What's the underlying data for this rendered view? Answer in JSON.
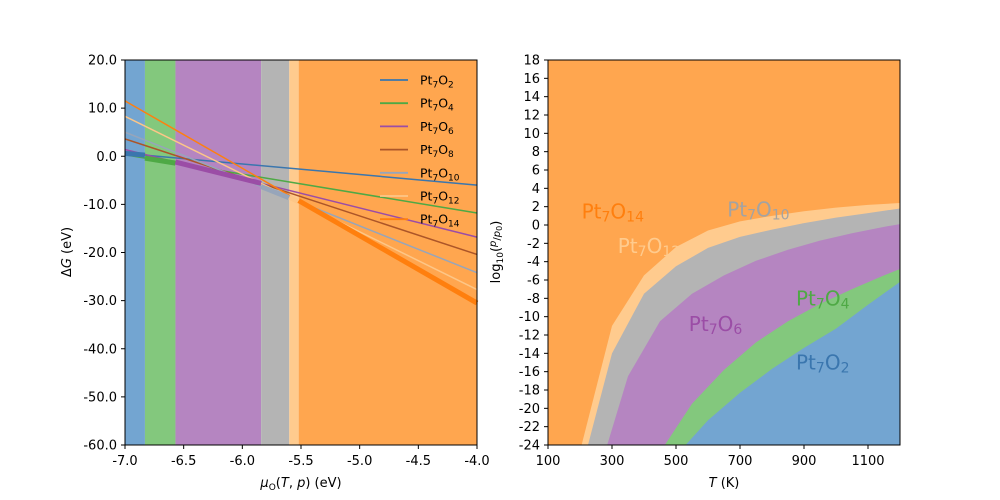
{
  "chart_data": [
    {
      "type": "line",
      "xlabel": "μ_O(T, p) (eV)",
      "ylabel": "ΔG (eV)",
      "xlim": [
        -7.0,
        -4.0
      ],
      "ylim": [
        -60.0,
        20.0
      ],
      "xticks": [
        "-7.0",
        "-6.5",
        "-6.0",
        "-5.5",
        "-5.0",
        "-4.5",
        "-4.0"
      ],
      "yticks": [
        "20.0",
        "10.0",
        "0.0",
        "-10.0",
        "-20.0",
        "-30.0",
        "-40.0",
        "-50.0",
        "-60.0"
      ],
      "legend_position": "top-right",
      "stability_bands": [
        {
          "phase": "Pt7O2",
          "from": -7.0,
          "to": -6.83,
          "color": "#73a5d1"
        },
        {
          "phase": "Pt7O4",
          "from": -6.83,
          "to": -6.57,
          "color": "#83c87d"
        },
        {
          "phase": "Pt7O6",
          "from": -6.57,
          "to": -5.84,
          "color": "#b585c1"
        },
        {
          "phase": "Pt7O10",
          "from": -5.84,
          "to": -5.6,
          "color": "#b4b4b4"
        },
        {
          "phase": "Pt7O12",
          "from": -5.6,
          "to": -5.52,
          "color": "#ffcb8e"
        },
        {
          "phase": "Pt7O14",
          "from": -5.52,
          "to": -4.0,
          "color": "#ffa64f"
        }
      ],
      "series": [
        {
          "name": "Pt7O2",
          "label_main": "Pt",
          "label_sub": "7",
          "label_main2": "O",
          "label_sub2": "2",
          "n": 2,
          "values_at_x": [
            [
              -7.0,
              0.6
            ],
            [
              -4.0,
              -6.0
            ]
          ],
          "color": "#3a76ae"
        },
        {
          "name": "Pt7O4",
          "label_main": "Pt",
          "label_sub": "7",
          "label_main2": "O",
          "label_sub2": "4",
          "n": 4,
          "values_at_x": [
            [
              -7.0,
              0.3
            ],
            [
              -4.0,
              -11.8
            ]
          ],
          "color": "#4ea945"
        },
        {
          "name": "Pt7O6",
          "label_main": "Pt",
          "label_sub": "7",
          "label_main2": "O",
          "label_sub2": "6",
          "n": 6,
          "values_at_x": [
            [
              -7.0,
              1.4
            ],
            [
              -4.0,
              -16.8
            ]
          ],
          "color": "#9b4da6"
        },
        {
          "name": "Pt7O8",
          "label_main": "Pt",
          "label_sub": "7",
          "label_main2": "O",
          "label_sub2": "8",
          "n": 8,
          "values_at_x": [
            [
              -7.0,
              3.6
            ],
            [
              -4.0,
              -20.4
            ]
          ],
          "color": "#ac5528"
        },
        {
          "name": "Pt7O10",
          "label_main": "Pt",
          "label_sub": "7",
          "label_main2": "O",
          "label_sub2": "10",
          "n": 10,
          "values_at_x": [
            [
              -7.0,
              5.0
            ],
            [
              -4.0,
              -24.2
            ]
          ],
          "color": "#97a5ba"
        },
        {
          "name": "Pt7O12",
          "label_main": "Pt",
          "label_sub": "7",
          "label_main2": "O",
          "label_sub2": "12",
          "n": 12,
          "values_at_x": [
            [
              -7.0,
              8.3
            ],
            [
              -4.0,
              -27.7
            ]
          ],
          "color": "#fdc687"
        },
        {
          "name": "Pt7O14",
          "label_main": "Pt",
          "label_sub": "7",
          "label_main2": "O",
          "label_sub2": "14",
          "n": 14,
          "values_at_x": [
            [
              -7.0,
              11.5
            ],
            [
              -4.0,
              -30.5
            ]
          ],
          "color": "#ff7f0e"
        }
      ]
    },
    {
      "type": "heatmap",
      "xlabel": "T (K)",
      "ylabel": "log10(p/p0)",
      "xlim": [
        100,
        1200
      ],
      "ylim": [
        -24,
        18
      ],
      "xticks": [
        "100",
        "300",
        "500",
        "700",
        "900",
        "1100"
      ],
      "yticks": [
        "18",
        "16",
        "14",
        "12",
        "10",
        "8",
        "6",
        "4",
        "2",
        "0",
        "-2",
        "-4",
        "-6",
        "-8",
        "-10",
        "-12",
        "-14",
        "-16",
        "-18",
        "-20",
        "-22",
        "-24"
      ],
      "boundaries": [
        {
          "between": [
            "Pt7O14",
            "Pt7O12"
          ],
          "points": [
            [
              205,
              -24
            ],
            [
              300,
              -11
            ],
            [
              400,
              -5.5
            ],
            [
              500,
              -2.4
            ],
            [
              600,
              -0.6
            ],
            [
              700,
              0.4
            ],
            [
              800,
              1.0
            ],
            [
              900,
              1.5
            ],
            [
              1000,
              1.9
            ],
            [
              1100,
              2.2
            ],
            [
              1200,
              2.4
            ]
          ]
        },
        {
          "between": [
            "Pt7O12",
            "Pt7O10"
          ],
          "points": [
            [
              225,
              -24
            ],
            [
              300,
              -14
            ],
            [
              400,
              -7.5
            ],
            [
              500,
              -4.5
            ],
            [
              600,
              -2.5
            ],
            [
              700,
              -1.3
            ],
            [
              800,
              -0.5
            ],
            [
              900,
              0.2
            ],
            [
              1000,
              0.8
            ],
            [
              1100,
              1.3
            ],
            [
              1200,
              1.8
            ]
          ]
        },
        {
          "between": [
            "Pt7O10",
            "Pt7O6"
          ],
          "points": [
            [
              285,
              -24
            ],
            [
              350,
              -16.5
            ],
            [
              450,
              -10.5
            ],
            [
              550,
              -7.5
            ],
            [
              650,
              -5.5
            ],
            [
              750,
              -3.9
            ],
            [
              850,
              -2.7
            ],
            [
              950,
              -1.7
            ],
            [
              1050,
              -0.9
            ],
            [
              1150,
              -0.2
            ],
            [
              1200,
              0.1
            ]
          ]
        },
        {
          "between": [
            "Pt7O6",
            "Pt7O4"
          ],
          "points": [
            [
              465,
              -24
            ],
            [
              550,
              -19.5
            ],
            [
              650,
              -15.8
            ],
            [
              750,
              -12.8
            ],
            [
              850,
              -10.5
            ],
            [
              950,
              -8.6
            ],
            [
              1050,
              -7.0
            ],
            [
              1150,
              -5.5
            ],
            [
              1200,
              -4.8
            ]
          ]
        },
        {
          "between": [
            "Pt7O4",
            "Pt7O2"
          ],
          "points": [
            [
              530,
              -24
            ],
            [
              600,
              -21.3
            ],
            [
              700,
              -18.3
            ],
            [
              800,
              -15.7
            ],
            [
              900,
              -13.4
            ],
            [
              1000,
              -11.3
            ],
            [
              1100,
              -8.7
            ],
            [
              1200,
              -6.2
            ]
          ]
        }
      ],
      "regions": [
        {
          "phase": "Pt7O14",
          "label_main": "Pt",
          "label_sub": "7",
          "label_main2": "O",
          "label_sub2": "14",
          "label_at": [
            205,
            1.5
          ],
          "color": "#ffa64f",
          "text_color": "#ff7f0e"
        },
        {
          "phase": "Pt7O12",
          "label_main": "Pt",
          "label_sub": "7",
          "label_main2": "O",
          "label_sub2": "12",
          "label_at": [
            318,
            -2.3
          ],
          "color": "#ffcb8e",
          "text_color": "#ffcb8e"
        },
        {
          "phase": "Pt7O10",
          "label_main": "Pt",
          "label_sub": "7",
          "label_main2": "O",
          "label_sub2": "10",
          "label_at": [
            660,
            1.7
          ],
          "color": "#b4b4b4",
          "text_color": "#a3a3a3"
        },
        {
          "phase": "Pt7O6",
          "label_main": "Pt",
          "label_sub": "7",
          "label_main2": "O",
          "label_sub2": "6",
          "label_at": [
            540,
            -10.8
          ],
          "color": "#b585c1",
          "text_color": "#9b4da6"
        },
        {
          "phase": "Pt7O4",
          "label_main": "Pt",
          "label_sub": "7",
          "label_main2": "O",
          "label_sub2": "4",
          "label_at": [
            875,
            -8.0
          ],
          "color": "#83c87d",
          "text_color": "#4ea945"
        },
        {
          "phase": "Pt7O2",
          "label_main": "Pt",
          "label_sub": "7",
          "label_main2": "O",
          "label_sub2": "2",
          "label_at": [
            875,
            -15.0
          ],
          "color": "#73a5d1",
          "text_color": "#3a76ae"
        }
      ]
    }
  ]
}
